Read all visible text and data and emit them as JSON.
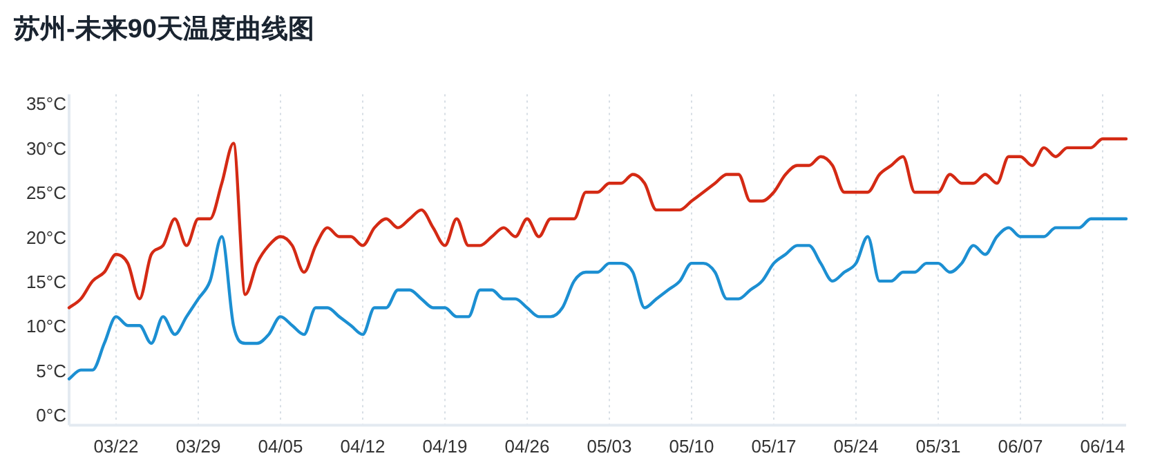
{
  "chart_data": {
    "type": "line",
    "title": "苏州-未来90天温度曲线图",
    "x": [
      "--03-18",
      "--03-19",
      "--03-20",
      "--03-21",
      "--03-22",
      "--03-23",
      "--03-24",
      "--03-25",
      "--03-26",
      "--03-27",
      "--03-28",
      "--03-29",
      "--03-30",
      "--03-31",
      "--04-01",
      "--04-02",
      "--04-03",
      "--04-04",
      "--04-05",
      "--04-06",
      "--04-07",
      "--04-08",
      "--04-09",
      "--04-10",
      "--04-11",
      "--04-12",
      "--04-13",
      "--04-14",
      "--04-15",
      "--04-16",
      "--04-17",
      "--04-18",
      "--04-19",
      "--04-20",
      "--04-21",
      "--04-22",
      "--04-23",
      "--04-24",
      "--04-25",
      "--04-26",
      "--04-27",
      "--04-28",
      "--04-29",
      "--04-30",
      "--05-01",
      "--05-02",
      "--05-03",
      "--05-04",
      "--05-05",
      "--05-06",
      "--05-07",
      "--05-08",
      "--05-09",
      "--05-10",
      "--05-11",
      "--05-12",
      "--05-13",
      "--05-14",
      "--05-15",
      "--05-16",
      "--05-17",
      "--05-18",
      "--05-19",
      "--05-20",
      "--05-21",
      "--05-22",
      "--05-23",
      "--05-24",
      "--05-25",
      "--05-26",
      "--05-27",
      "--05-28",
      "--05-29",
      "--05-30",
      "--05-31",
      "--06-01",
      "--06-02",
      "--06-03",
      "--06-04",
      "--06-05",
      "--06-06",
      "--06-07",
      "--06-08",
      "--06-09",
      "--06-10",
      "--06-11",
      "--06-12",
      "--06-13",
      "--06-14",
      "--06-15",
      "--06-16"
    ],
    "series": [
      {
        "color": "#d42a14",
        "values": [
          12,
          13,
          15,
          16,
          18,
          17,
          13,
          18,
          19,
          22,
          19,
          22,
          22,
          26,
          30.5,
          13.5,
          17,
          19,
          20,
          19,
          16,
          19,
          21,
          20,
          20,
          19,
          21,
          22,
          21,
          22,
          23,
          21,
          19,
          22,
          19,
          19,
          20,
          21,
          20,
          22,
          20,
          22,
          22,
          22,
          25,
          25,
          26,
          26,
          27,
          26,
          23,
          23,
          23,
          24,
          25,
          26,
          27,
          27,
          24,
          24,
          25,
          27,
          28,
          28,
          29,
          28,
          25,
          25,
          25,
          27,
          28,
          29,
          25,
          25,
          25,
          27,
          26,
          26,
          27,
          26,
          29,
          29,
          28,
          30,
          29,
          30,
          30,
          30,
          31,
          31,
          31
        ]
      },
      {
        "color": "#1c8fd2",
        "values": [
          4,
          5,
          5,
          8,
          11,
          10,
          10,
          8,
          11,
          9,
          11,
          13,
          15,
          20,
          10,
          8,
          8,
          9,
          11,
          10,
          9,
          12,
          12,
          11,
          10,
          9,
          12,
          12,
          14,
          14,
          13,
          12,
          12,
          11,
          11,
          14,
          14,
          13,
          13,
          12,
          11,
          11,
          12,
          15,
          16,
          16,
          17,
          17,
          16,
          12,
          13,
          14,
          15,
          17,
          17,
          16,
          13,
          13,
          14,
          15,
          17,
          18,
          19,
          19,
          17,
          15,
          16,
          17,
          20,
          15,
          15,
          16,
          16,
          17,
          17,
          16,
          17,
          19,
          18,
          20,
          21,
          20,
          20,
          20,
          21,
          21,
          21,
          22,
          22,
          22,
          22
        ]
      }
    ],
    "xlim": [
      "--03-18",
      "--06-16"
    ],
    "xticks": [
      {
        "value": "--03-22",
        "label": "03/22"
      },
      {
        "value": "--03-29",
        "label": "03/29"
      },
      {
        "value": "--04-05",
        "label": "04/05"
      },
      {
        "value": "--04-12",
        "label": "04/12"
      },
      {
        "value": "--04-19",
        "label": "04/19"
      },
      {
        "value": "--04-26",
        "label": "04/26"
      },
      {
        "value": "--05-03",
        "label": "05/03"
      },
      {
        "value": "--05-10",
        "label": "05/10"
      },
      {
        "value": "--05-17",
        "label": "05/17"
      },
      {
        "value": "--05-24",
        "label": "05/24"
      },
      {
        "value": "--05-31",
        "label": "05/31"
      },
      {
        "value": "--06-07",
        "label": "06/07"
      },
      {
        "value": "--06-14",
        "label": "06/14"
      }
    ],
    "ylim": [
      -1.2,
      36
    ],
    "yticks": [
      {
        "value": 0,
        "label": "0°C"
      },
      {
        "value": 5,
        "label": "5°C"
      },
      {
        "value": 10,
        "label": "10°C"
      },
      {
        "value": 15,
        "label": "15°C"
      },
      {
        "value": 20,
        "label": "20°C"
      },
      {
        "value": 25,
        "label": "25°C"
      },
      {
        "value": 30,
        "label": "30°C"
      },
      {
        "value": 35,
        "label": "35°C"
      }
    ],
    "grid": "x"
  }
}
